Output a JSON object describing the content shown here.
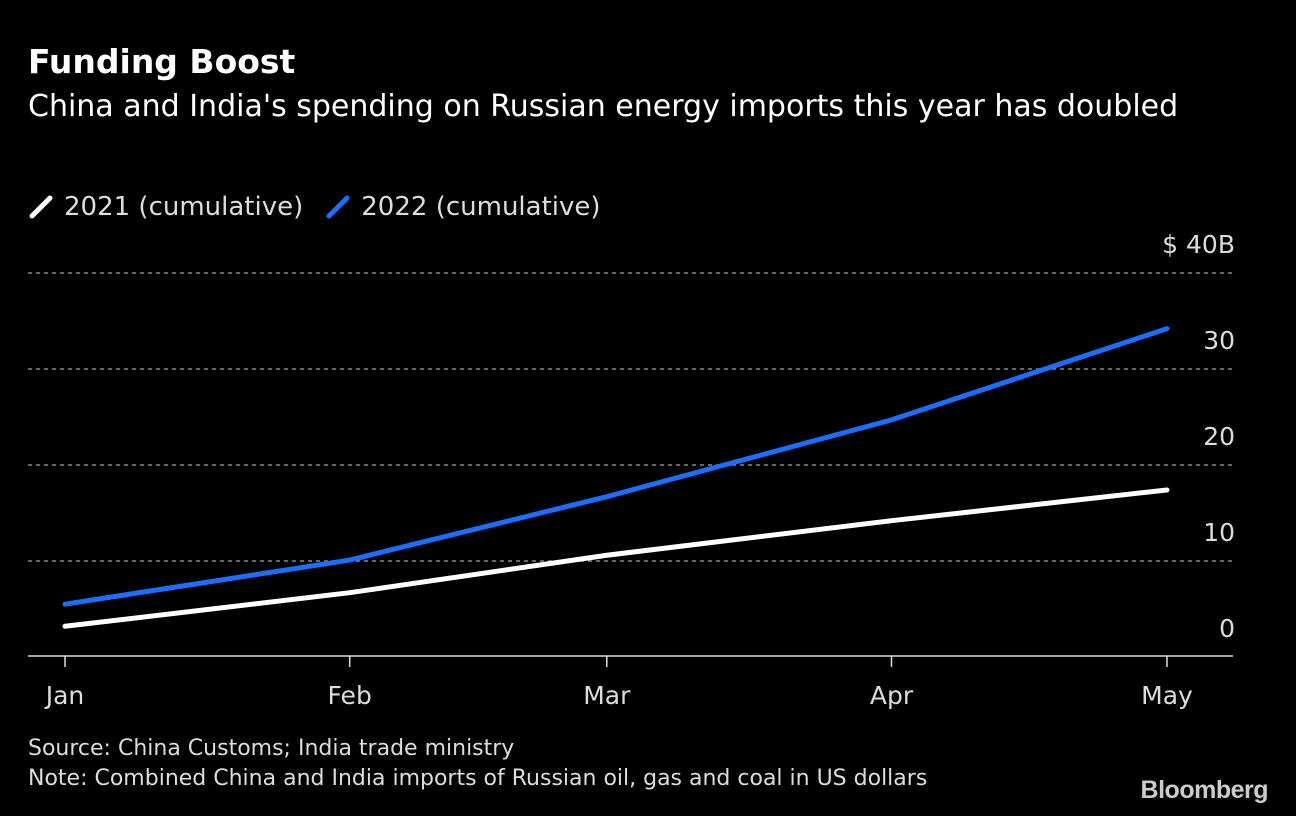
{
  "chart_data": {
    "type": "line",
    "title": "Funding Boost",
    "subtitle": "China and India's spending on Russian energy imports this year has doubled",
    "x": [
      "2022-01-01",
      "2022-02-01",
      "2022-03-01",
      "2022-04-01",
      "2022-05-01"
    ],
    "x_tick_labels": [
      "Jan",
      "Feb",
      "Mar",
      "Apr",
      "May"
    ],
    "series": [
      {
        "name": "2021 (cumulative)",
        "color": "#ffffff",
        "values": [
          3.2,
          6.7,
          10.6,
          14.2,
          17.4
        ]
      },
      {
        "name": "2022 (cumulative)",
        "color": "#1a6fff",
        "values": [
          5.5,
          10.1,
          16.7,
          24.7,
          34.2
        ]
      }
    ],
    "y_ticks": [
      0,
      10,
      20,
      30,
      40
    ],
    "y_tick_labels": [
      "0",
      "10",
      "20",
      "30",
      "$ 40B"
    ],
    "ylim": [
      0,
      40
    ],
    "y_axis_position": "right",
    "grid": true,
    "legend_position": "top-left",
    "xlabel": "",
    "ylabel": ""
  },
  "footer": {
    "source": "Source: China Customs; India trade ministry",
    "note": "Note: Combined China and India imports of Russian oil, gas and coal in US dollars"
  },
  "logo": "Bloomberg"
}
